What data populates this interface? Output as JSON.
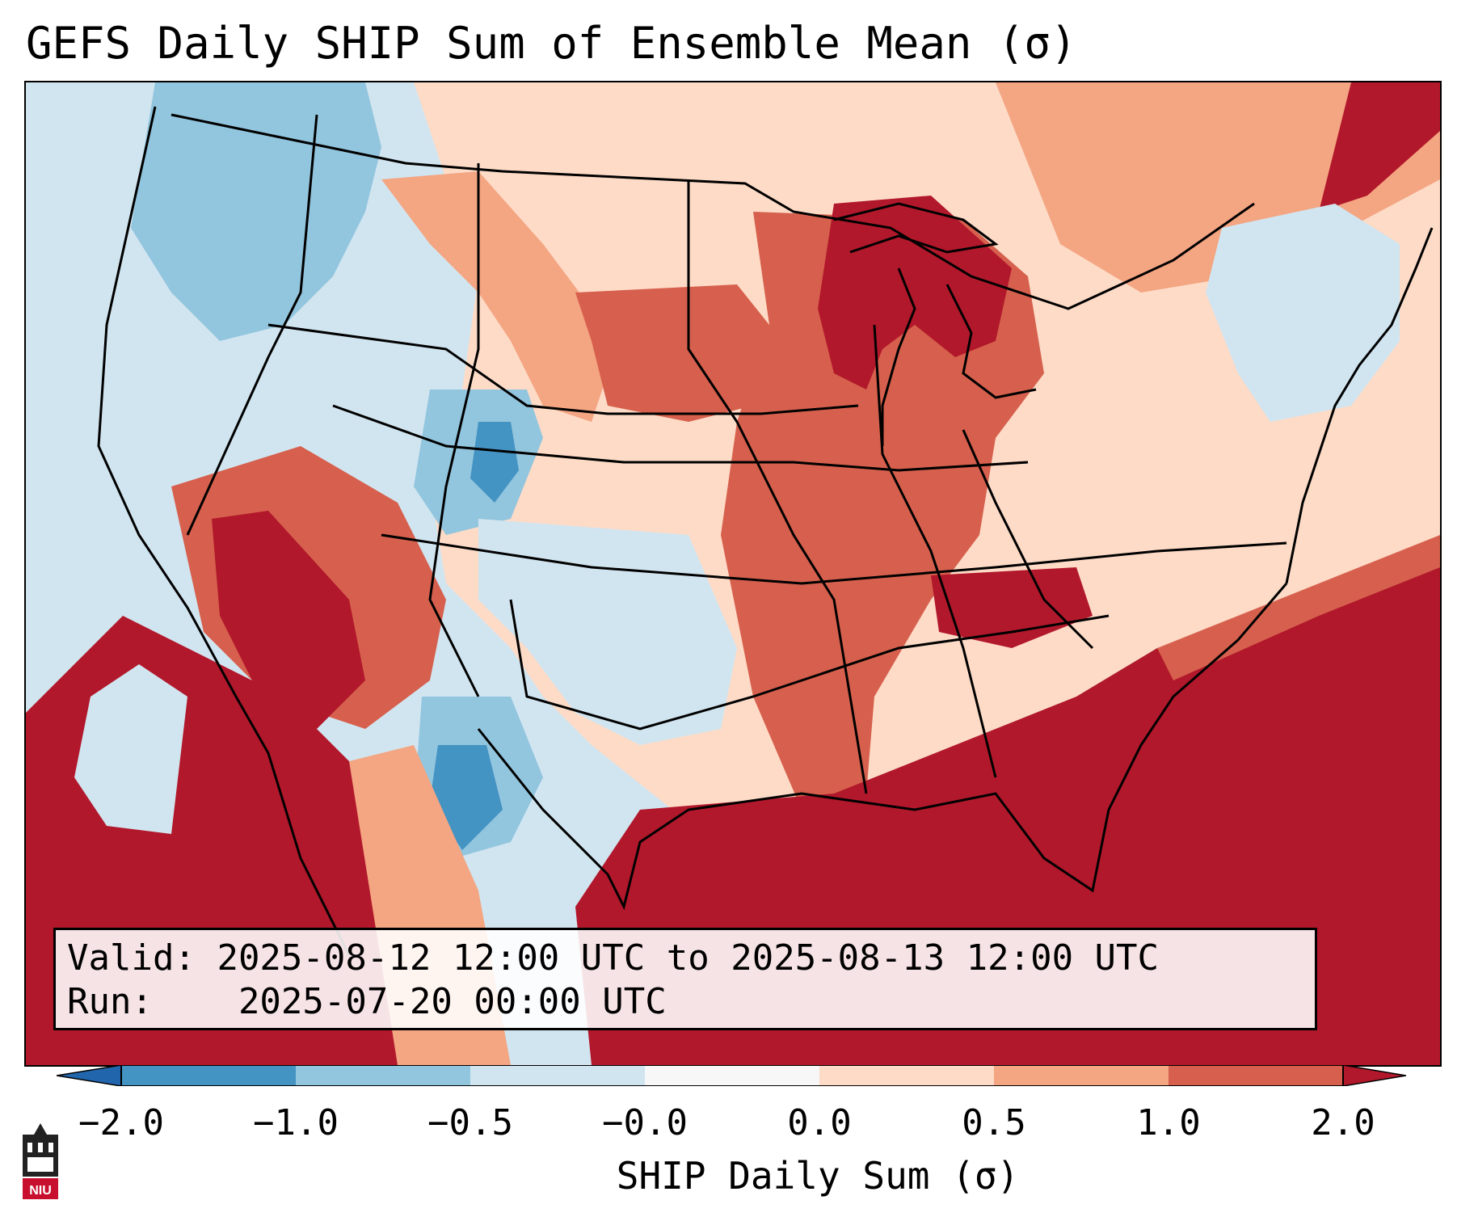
{
  "title": "GEFS Daily SHIP Sum of Ensemble Mean (σ)",
  "info": {
    "valid_label": "Valid:",
    "valid_value": "2025-08-12 12:00 UTC to 2025-08-13 12:00 UTC",
    "run_label": "Run:",
    "run_value": "2025-07-20 00:00 UTC"
  },
  "colorbar": {
    "label": "SHIP Daily Sum (σ)",
    "ticks": [
      "−2.0",
      "−1.0",
      "−0.5",
      "−0.0",
      "0.0",
      "0.5",
      "1.0",
      "2.0"
    ],
    "colors": [
      "#4393c3",
      "#92c5de",
      "#d1e5f0",
      "#f7f7f7",
      "#fddbc7",
      "#f4a582",
      "#d6604d",
      "#b2182b"
    ],
    "extend": "both"
  },
  "logo": {
    "text": "NIU"
  }
}
